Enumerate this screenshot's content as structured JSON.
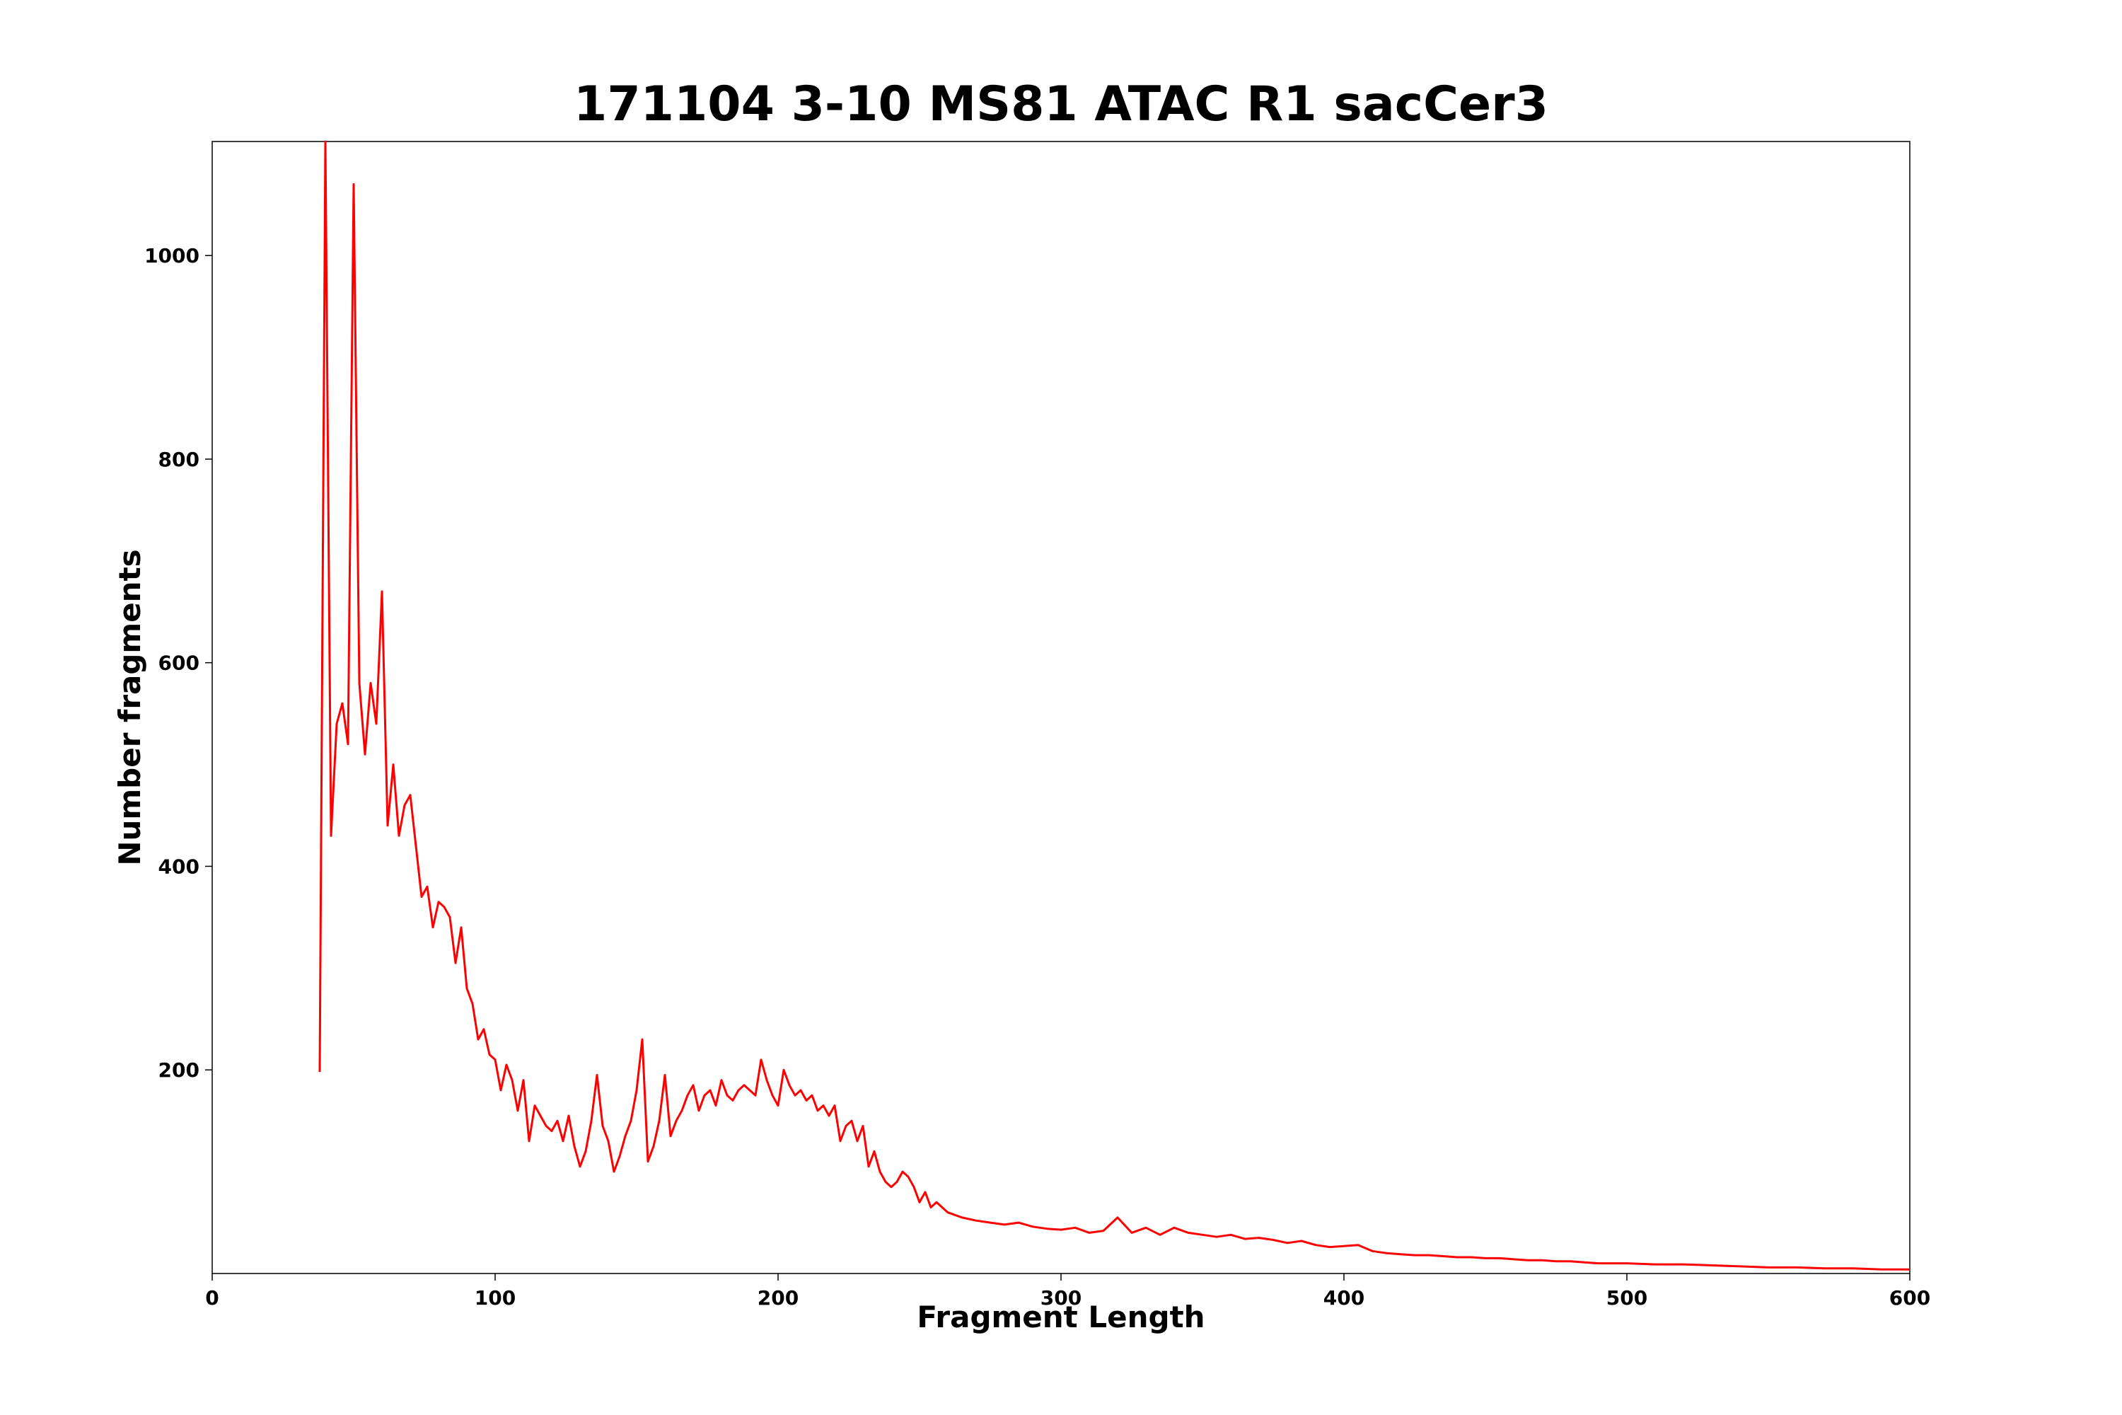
{
  "chart_data": {
    "type": "line",
    "title": "171104 3-10 MS81 ATAC R1 sacCer3",
    "xlabel": "Fragment Length",
    "ylabel": "Number fragments",
    "xlim": [
      0,
      600
    ],
    "ylim": [
      0,
      1112
    ],
    "xticks": [
      0,
      100,
      200,
      300,
      400,
      500,
      600
    ],
    "yticks": [
      200,
      400,
      600,
      800,
      1000
    ],
    "grid": false,
    "legend": "none",
    "series": [
      {
        "color": "#ff0000",
        "x": [
          38,
          40,
          42,
          44,
          46,
          48,
          50,
          52,
          54,
          56,
          58,
          60,
          62,
          64,
          66,
          68,
          70,
          72,
          74,
          76,
          78,
          80,
          82,
          84,
          86,
          88,
          90,
          92,
          94,
          96,
          98,
          100,
          102,
          104,
          106,
          108,
          110,
          112,
          114,
          116,
          118,
          120,
          122,
          124,
          126,
          128,
          130,
          132,
          134,
          136,
          138,
          140,
          142,
          144,
          146,
          148,
          150,
          152,
          154,
          156,
          158,
          160,
          162,
          164,
          166,
          168,
          170,
          172,
          174,
          176,
          178,
          180,
          182,
          184,
          186,
          188,
          190,
          192,
          194,
          196,
          198,
          200,
          202,
          204,
          206,
          208,
          210,
          212,
          214,
          216,
          218,
          220,
          222,
          224,
          226,
          228,
          230,
          232,
          234,
          236,
          238,
          240,
          242,
          244,
          246,
          248,
          250,
          252,
          254,
          256,
          258,
          260,
          265,
          270,
          275,
          280,
          285,
          290,
          295,
          300,
          305,
          310,
          315,
          320,
          325,
          330,
          335,
          340,
          345,
          350,
          355,
          360,
          365,
          370,
          375,
          380,
          385,
          390,
          395,
          400,
          405,
          410,
          415,
          420,
          425,
          430,
          435,
          440,
          445,
          450,
          455,
          460,
          465,
          470,
          475,
          480,
          485,
          490,
          495,
          500,
          510,
          520,
          530,
          540,
          550,
          560,
          570,
          580,
          590,
          600
        ],
        "y": [
          198,
          1112,
          430,
          540,
          560,
          520,
          1070,
          580,
          510,
          580,
          540,
          670,
          440,
          500,
          430,
          460,
          470,
          420,
          370,
          380,
          340,
          365,
          360,
          350,
          305,
          340,
          280,
          265,
          230,
          240,
          215,
          210,
          180,
          205,
          190,
          160,
          190,
          130,
          165,
          155,
          145,
          140,
          150,
          130,
          155,
          125,
          105,
          120,
          150,
          195,
          145,
          130,
          100,
          115,
          135,
          150,
          180,
          230,
          110,
          125,
          150,
          195,
          135,
          150,
          160,
          175,
          185,
          160,
          175,
          180,
          165,
          190,
          175,
          170,
          180,
          185,
          180,
          175,
          210,
          190,
          175,
          165,
          200,
          185,
          175,
          180,
          170,
          175,
          160,
          165,
          155,
          165,
          130,
          145,
          150,
          130,
          145,
          105,
          120,
          100,
          90,
          85,
          90,
          100,
          95,
          85,
          70,
          80,
          65,
          70,
          65,
          60,
          55,
          52,
          50,
          48,
          50,
          46,
          44,
          43,
          45,
          40,
          42,
          55,
          40,
          45,
          38,
          45,
          40,
          38,
          36,
          38,
          34,
          35,
          33,
          30,
          32,
          28,
          26,
          27,
          28,
          22,
          20,
          19,
          18,
          18,
          17,
          16,
          16,
          15,
          15,
          14,
          13,
          13,
          12,
          12,
          11,
          10,
          10,
          10,
          9,
          9,
          8,
          7,
          6,
          6,
          5,
          5,
          4,
          4
        ]
      }
    ]
  }
}
